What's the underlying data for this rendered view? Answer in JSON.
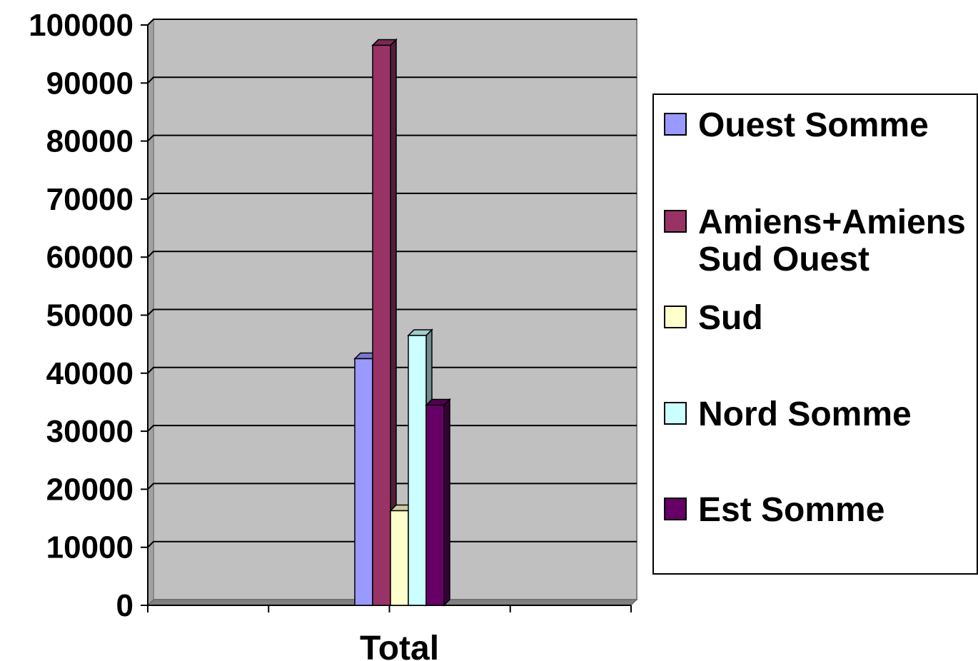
{
  "chart_data": {
    "type": "bar",
    "categories": [
      "Total"
    ],
    "series": [
      {
        "name": "Ouest Somme",
        "values": [
          42500
        ],
        "color": "#9999ff"
      },
      {
        "name": "Amiens+Amiens Sud Ouest",
        "values": [
          96500
        ],
        "color": "#993366"
      },
      {
        "name": "Sud",
        "values": [
          16300
        ],
        "color": "#ffffcc"
      },
      {
        "name": "Nord Somme",
        "values": [
          46500
        ],
        "color": "#ccffff"
      },
      {
        "name": "Est Somme",
        "values": [
          34500
        ],
        "color": "#660066"
      }
    ],
    "ylim": [
      0,
      100000
    ],
    "yticks": [
      "0",
      "10000",
      "20000",
      "30000",
      "40000",
      "50000",
      "60000",
      "70000",
      "80000",
      "90000",
      "100000"
    ],
    "grid": true,
    "legend_position": "right",
    "plot_background": "#c0c0c0",
    "title": "",
    "xlabel": "",
    "ylabel": ""
  },
  "legend": {
    "items": [
      {
        "label": "Ouest Somme",
        "color": "#9999ff"
      },
      {
        "label": "Amiens+Amiens Sud Ouest",
        "color": "#993366"
      },
      {
        "label": "Sud",
        "color": "#ffffcc"
      },
      {
        "label": "Nord Somme",
        "color": "#ccffff"
      },
      {
        "label": "Est Somme",
        "color": "#660066"
      }
    ]
  }
}
